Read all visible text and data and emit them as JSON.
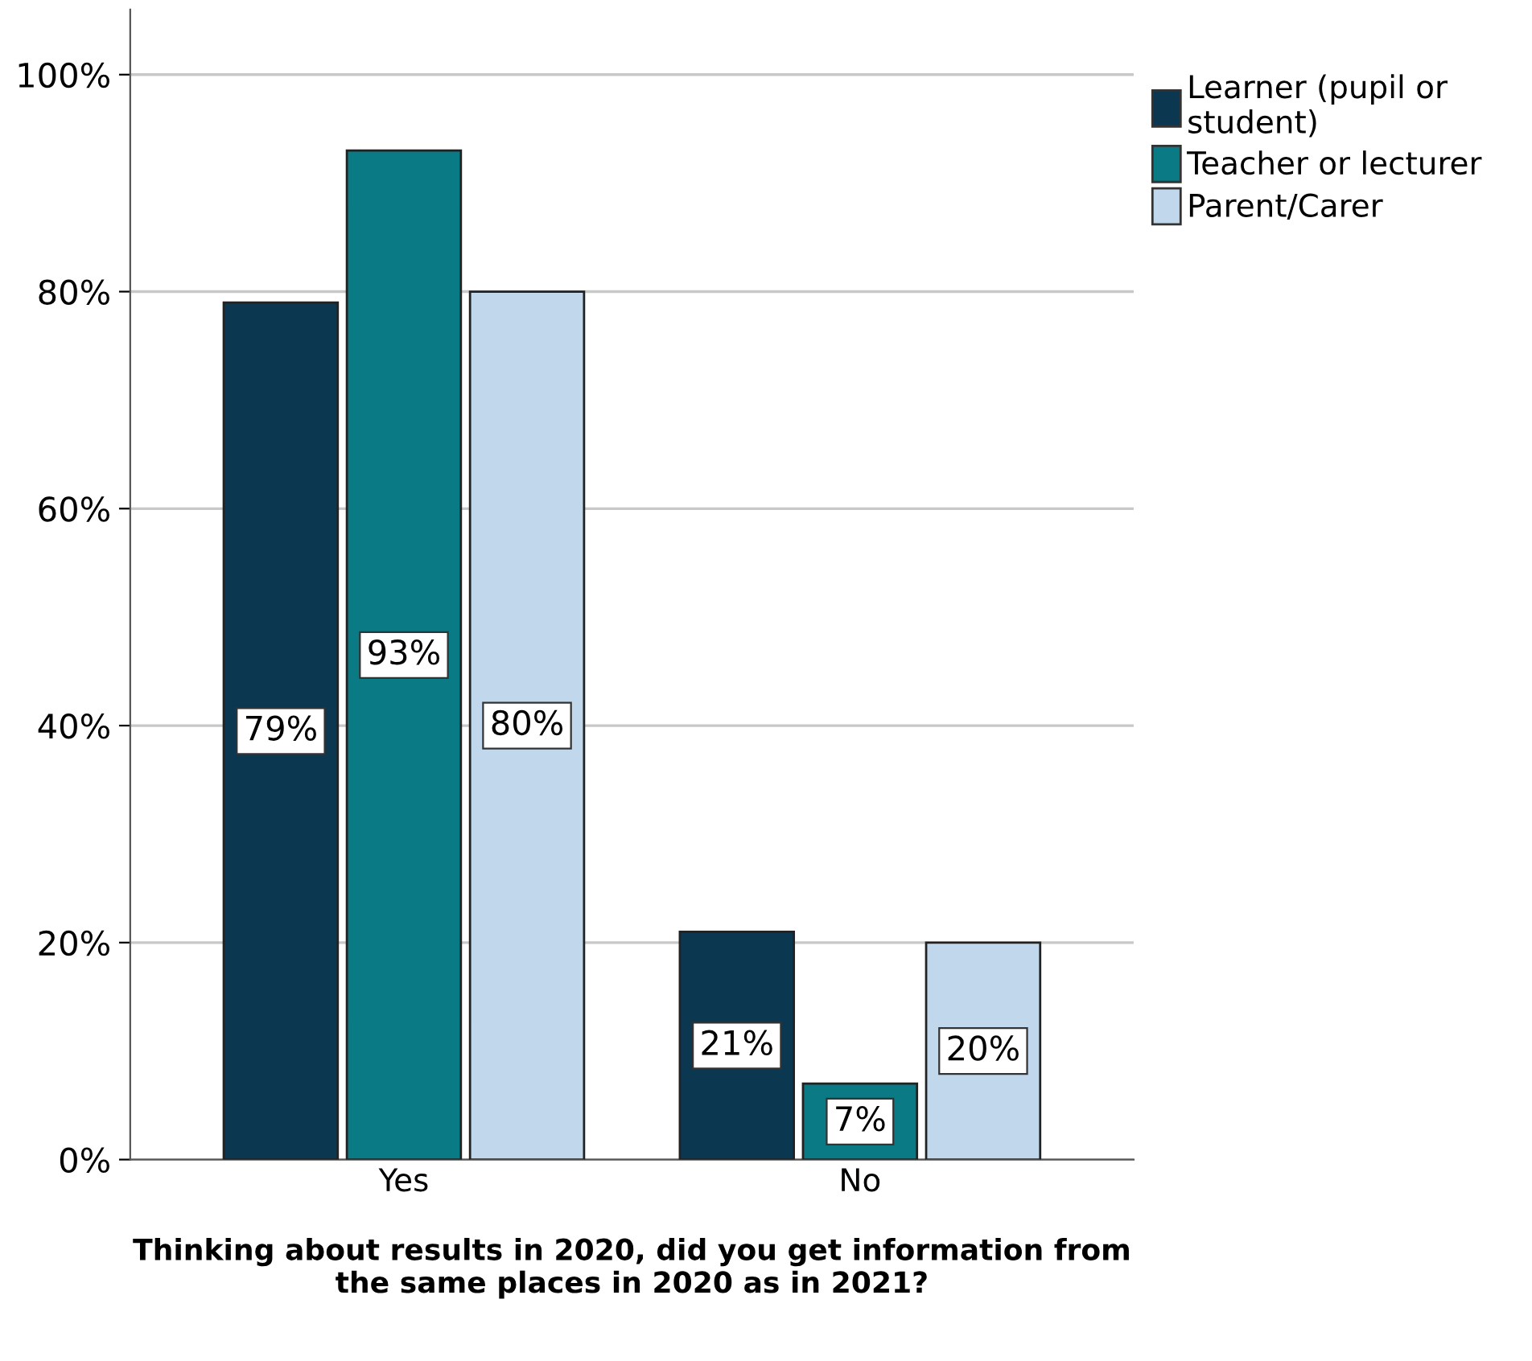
{
  "chart_data": {
    "type": "bar",
    "xlabel": "Thinking about results in 2020, did you get information from\nthe same places in 2020 as in 2021?",
    "categories": [
      "Yes",
      "No"
    ],
    "series": [
      {
        "name": "Learner (pupil or\nstudent)",
        "color": "#0b3850",
        "values": [
          79,
          21
        ],
        "value_labels": [
          "79%",
          "21%"
        ]
      },
      {
        "name": "Teacher or lecturer",
        "color": "#0a7a84",
        "values": [
          93,
          7
        ],
        "value_labels": [
          "93%",
          "7%"
        ]
      },
      {
        "name": "Parent/Carer",
        "color": "#c1d7eb",
        "values": [
          80,
          20
        ],
        "value_labels": [
          "80%",
          "20%"
        ]
      }
    ],
    "ylim": [
      0,
      106
    ],
    "yticks": [
      {
        "value": 0,
        "label": "0%"
      },
      {
        "value": 20,
        "label": "20%"
      },
      {
        "value": 40,
        "label": "40%"
      },
      {
        "value": 60,
        "label": "60%"
      },
      {
        "value": 80,
        "label": "80%"
      },
      {
        "value": 100,
        "label": "100%"
      }
    ],
    "grid": "y",
    "legend": "top right"
  }
}
